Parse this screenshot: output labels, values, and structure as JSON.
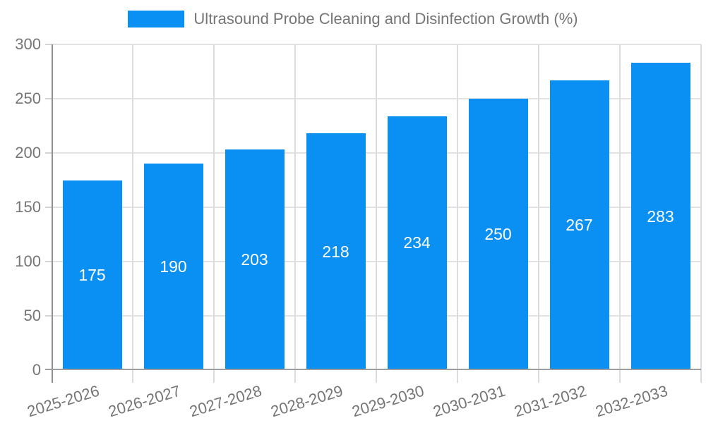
{
  "legend": {
    "label": "Ultrasound Probe Cleaning and Disinfection Growth (%)"
  },
  "chart_data": {
    "type": "bar",
    "title": "Ultrasound Probe Cleaning and Disinfection Growth (%)",
    "categories": [
      "2025-2026",
      "2026-2027",
      "2027-2028",
      "2028-2029",
      "2029-2030",
      "2030-2031",
      "2031-2032",
      "2032-2033"
    ],
    "values": [
      175,
      190,
      203,
      218,
      234,
      250,
      267,
      283
    ],
    "xlabel": "",
    "ylabel": "",
    "ylim": [
      0,
      300
    ],
    "y_ticks": [
      0,
      50,
      100,
      150,
      200,
      250,
      300
    ],
    "grid": true,
    "legend_position": "top-center",
    "value_labels": "centered-inside-bars",
    "bar_color": "#0a8ff2",
    "value_label_color": "#ffffff",
    "axis_text_color": "#757575",
    "gridline_color": "#e2e2e2",
    "axis_line_color": "#9e9e9e"
  }
}
